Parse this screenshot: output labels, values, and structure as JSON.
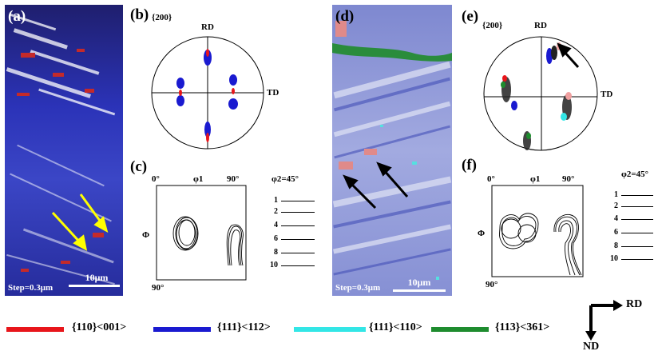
{
  "panels": {
    "a": {
      "label": "(a)",
      "step": "Step=0.3μm",
      "scale": "10μm"
    },
    "b": {
      "label": "(b)",
      "plane": "{200}",
      "rd": "RD",
      "td": "TD"
    },
    "c": {
      "label": "(c)",
      "x0": "0°",
      "x_mid": "φ1",
      "x1": "90°",
      "y_axis": "Φ",
      "y1": "90°",
      "phi2": "φ2=45°"
    },
    "d": {
      "label": "(d)",
      "step": "Step=0.3μm",
      "scale": "10μm"
    },
    "e": {
      "label": "(e)",
      "plane": "{200}",
      "rd": "RD",
      "td": "TD"
    },
    "f": {
      "label": "(f)",
      "x0": "0°",
      "x_mid": "φ1",
      "x1": "90°",
      "y_axis": "Φ",
      "y1": "90°",
      "phi2": "φ2=45°"
    }
  },
  "contour_levels": [
    "1",
    "2",
    "4",
    "6",
    "8",
    "10"
  ],
  "legend": [
    {
      "label": "{110}<001>",
      "color": "#e8161b"
    },
    {
      "label": "{111}<112>",
      "color": "#1a1ad0"
    },
    {
      "label": "{111}<110>",
      "color": "#33e6e6"
    },
    {
      "label": "{113}<361>",
      "color": "#1e8c2e"
    }
  ],
  "axes_indicator": {
    "rd": "RD",
    "nd": "ND"
  }
}
